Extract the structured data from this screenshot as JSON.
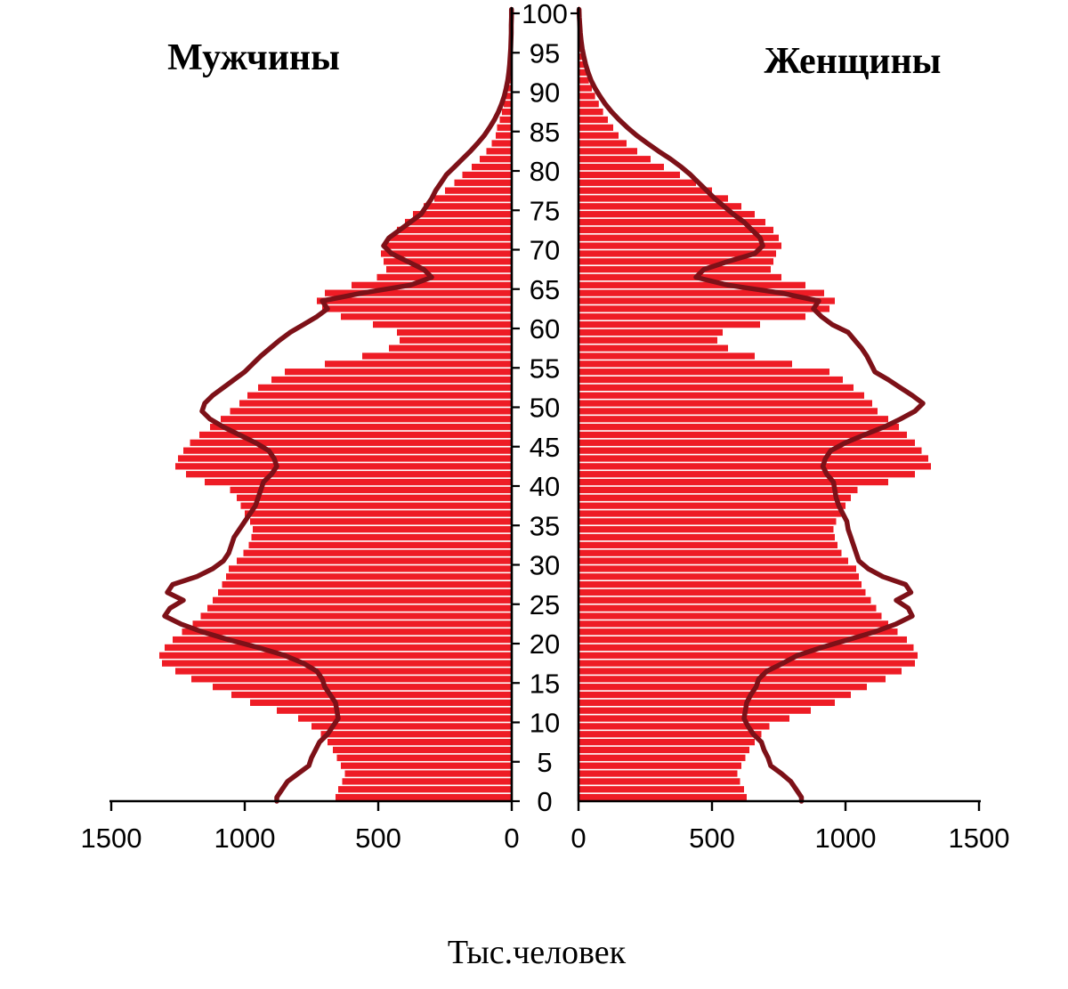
{
  "page": {
    "background": "#ffffff"
  },
  "chart_data": {
    "type": "bar",
    "variant": "population-pyramid",
    "left_title": "Мужчины",
    "right_title": "Женщины",
    "xlabel": "Тыс.человек",
    "unit": "thousands of people per single year of age",
    "bar_color": "#ee1c25",
    "line_color": "#7d1118",
    "axis_color": "#000000",
    "xlim": [
      0,
      1500
    ],
    "x_ticks": [
      0,
      500,
      1000,
      1500
    ],
    "age_range": [
      0,
      100
    ],
    "age_tick_step": 5,
    "age_ticks": [
      0,
      5,
      10,
      15,
      20,
      25,
      30,
      35,
      40,
      45,
      50,
      55,
      60,
      65,
      70,
      75,
      80,
      85,
      90,
      95,
      100
    ],
    "legend": "none",
    "grid": false,
    "series": [
      {
        "name": "males-bars",
        "side": "left",
        "style": "bar",
        "values": [
          660,
          650,
          635,
          625,
          640,
          655,
          670,
          690,
          715,
          750,
          800,
          880,
          980,
          1050,
          1120,
          1200,
          1260,
          1310,
          1320,
          1300,
          1270,
          1235,
          1195,
          1165,
          1140,
          1120,
          1100,
          1085,
          1070,
          1060,
          1030,
          1005,
          985,
          975,
          970,
          980,
          1000,
          1015,
          1030,
          1055,
          1150,
          1220,
          1260,
          1250,
          1230,
          1205,
          1170,
          1130,
          1090,
          1055,
          1020,
          990,
          950,
          900,
          850,
          700,
          560,
          460,
          420,
          430,
          520,
          640,
          710,
          730,
          700,
          600,
          505,
          470,
          480,
          490,
          480,
          460,
          430,
          400,
          370,
          330,
          290,
          250,
          215,
          185,
          150,
          120,
          95,
          75,
          60,
          55,
          45,
          37,
          30,
          24,
          19,
          14,
          11,
          8,
          6,
          4,
          3,
          2,
          2,
          1,
          1
        ]
      },
      {
        "name": "females-bars",
        "side": "right",
        "style": "bar",
        "values": [
          630,
          620,
          605,
          595,
          610,
          625,
          640,
          660,
          685,
          715,
          790,
          870,
          960,
          1020,
          1080,
          1150,
          1210,
          1260,
          1270,
          1255,
          1230,
          1195,
          1160,
          1135,
          1115,
          1095,
          1075,
          1060,
          1050,
          1040,
          1010,
          985,
          970,
          960,
          955,
          965,
          985,
          1000,
          1020,
          1045,
          1160,
          1260,
          1320,
          1310,
          1285,
          1260,
          1230,
          1200,
          1160,
          1120,
          1100,
          1070,
          1030,
          990,
          940,
          800,
          660,
          560,
          520,
          540,
          680,
          850,
          940,
          960,
          920,
          850,
          760,
          720,
          730,
          740,
          760,
          750,
          730,
          700,
          660,
          610,
          560,
          500,
          440,
          380,
          320,
          270,
          220,
          180,
          150,
          130,
          110,
          92,
          76,
          62,
          50,
          39,
          30,
          22,
          16,
          12,
          8,
          6,
          4,
          3,
          2
        ]
      },
      {
        "name": "males-line",
        "side": "left",
        "style": "line",
        "values": [
          880,
          860,
          840,
          800,
          760,
          750,
          735,
          720,
          690,
          670,
          650,
          655,
          660,
          680,
          700,
          710,
          730,
          780,
          850,
          950,
          1060,
          1160,
          1240,
          1300,
          1280,
          1230,
          1290,
          1270,
          1180,
          1120,
          1080,
          1060,
          1050,
          1040,
          1020,
          1000,
          980,
          960,
          950,
          940,
          930,
          900,
          880,
          890,
          910,
          960,
          1020,
          1080,
          1130,
          1160,
          1150,
          1120,
          1080,
          1040,
          1000,
          970,
          940,
          905,
          870,
          830,
          780,
          730,
          690,
          710,
          560,
          380,
          300,
          330,
          390,
          450,
          480,
          460,
          420,
          380,
          340,
          320,
          300,
          285,
          265,
          245,
          215,
          185,
          155,
          128,
          103,
          83,
          65,
          50,
          38,
          28,
          21,
          15,
          11,
          8,
          6,
          4,
          3,
          2,
          2,
          1,
          1
        ]
      },
      {
        "name": "females-line",
        "side": "right",
        "style": "line",
        "values": [
          835,
          815,
          795,
          760,
          720,
          710,
          695,
          685,
          655,
          635,
          620,
          625,
          630,
          645,
          665,
          675,
          705,
          765,
          820,
          910,
          1010,
          1110,
          1190,
          1250,
          1235,
          1190,
          1245,
          1225,
          1140,
          1085,
          1050,
          1040,
          1030,
          1020,
          1010,
          1005,
          990,
          975,
          965,
          960,
          955,
          930,
          915,
          925,
          945,
          1000,
          1070,
          1145,
          1205,
          1260,
          1290,
          1250,
          1205,
          1160,
          1110,
          1095,
          1080,
          1060,
          1035,
          1010,
          950,
          910,
          880,
          900,
          760,
          560,
          440,
          470,
          560,
          660,
          690,
          680,
          650,
          620,
          580,
          545,
          510,
          480,
          450,
          420,
          385,
          345,
          300,
          258,
          218,
          183,
          152,
          124,
          100,
          80,
          62,
          47,
          36,
          27,
          20,
          14,
          10,
          7,
          5,
          3,
          2
        ]
      }
    ]
  }
}
